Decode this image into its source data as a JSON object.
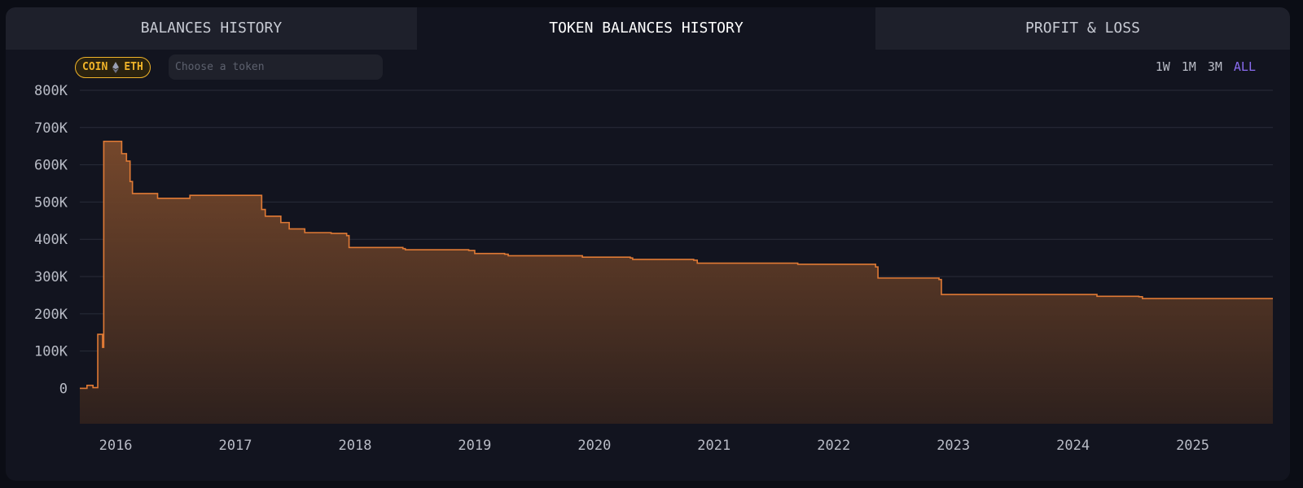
{
  "tabs": [
    {
      "label": "BALANCES HISTORY",
      "active": false
    },
    {
      "label": "TOKEN BALANCES HISTORY",
      "active": true
    },
    {
      "label": "PROFIT & LOSS",
      "active": false
    }
  ],
  "coin_pill": {
    "label_left": "COIN",
    "icon": "eth-diamond-icon",
    "label_right": "ETH"
  },
  "token_search": {
    "placeholder": "Choose a token",
    "value": ""
  },
  "time_ranges": [
    {
      "label": "1W",
      "active": false
    },
    {
      "label": "1M",
      "active": false
    },
    {
      "label": "3M",
      "active": false
    },
    {
      "label": "ALL",
      "active": true
    }
  ],
  "colors": {
    "line": "#e07a35",
    "fill_top": "#7a4a2c",
    "fill_bottom": "#2f211d",
    "grid": "#2a2d3a",
    "coin_accent": "#f0b429",
    "range_active": "#8a6cf0"
  },
  "chart_data": {
    "type": "area",
    "step": true,
    "y_tick_labels": [
      "800K",
      "700K",
      "600K",
      "500K",
      "400K",
      "300K",
      "200K",
      "100K",
      "0"
    ],
    "y_ticks": [
      800000,
      700000,
      600000,
      500000,
      400000,
      300000,
      200000,
      100000,
      0
    ],
    "ylim": [
      -95000,
      800000
    ],
    "x_tick_labels": [
      "2016",
      "2017",
      "2018",
      "2019",
      "2020",
      "2021",
      "2022",
      "2023",
      "2024",
      "2025"
    ],
    "x_ticks": [
      2016,
      2017,
      2018,
      2019,
      2020,
      2021,
      2022,
      2023,
      2024,
      2025
    ],
    "xlim": [
      2015.7,
      2025.67
    ],
    "grid": true,
    "series": [
      {
        "points": [
          [
            2015.7,
            0
          ],
          [
            2015.76,
            8000
          ],
          [
            2015.81,
            2000
          ],
          [
            2015.85,
            145000
          ],
          [
            2015.89,
            110000
          ],
          [
            2015.9,
            663000
          ],
          [
            2016.03,
            663000
          ],
          [
            2016.05,
            630000
          ],
          [
            2016.09,
            610000
          ],
          [
            2016.12,
            555000
          ],
          [
            2016.14,
            523000
          ],
          [
            2016.23,
            523000
          ],
          [
            2016.35,
            510000
          ],
          [
            2016.6,
            510000
          ],
          [
            2016.62,
            518000
          ],
          [
            2017.2,
            518000
          ],
          [
            2017.22,
            480000
          ],
          [
            2017.25,
            462000
          ],
          [
            2017.35,
            462000
          ],
          [
            2017.38,
            445000
          ],
          [
            2017.45,
            428000
          ],
          [
            2017.55,
            428000
          ],
          [
            2017.58,
            418000
          ],
          [
            2017.8,
            416000
          ],
          [
            2017.93,
            410000
          ],
          [
            2017.95,
            378000
          ],
          [
            2018.4,
            375000
          ],
          [
            2018.42,
            372000
          ],
          [
            2018.95,
            370000
          ],
          [
            2019.0,
            362000
          ],
          [
            2019.25,
            360000
          ],
          [
            2019.28,
            356000
          ],
          [
            2019.9,
            352000
          ],
          [
            2020.3,
            350000
          ],
          [
            2020.32,
            346000
          ],
          [
            2020.83,
            344000
          ],
          [
            2020.86,
            336000
          ],
          [
            2021.7,
            333000
          ],
          [
            2022.35,
            326000
          ],
          [
            2022.37,
            296000
          ],
          [
            2022.88,
            292000
          ],
          [
            2022.9,
            252000
          ],
          [
            2024.2,
            247000
          ],
          [
            2024.55,
            246000
          ],
          [
            2024.58,
            241000
          ],
          [
            2025.67,
            241000
          ]
        ]
      }
    ]
  }
}
